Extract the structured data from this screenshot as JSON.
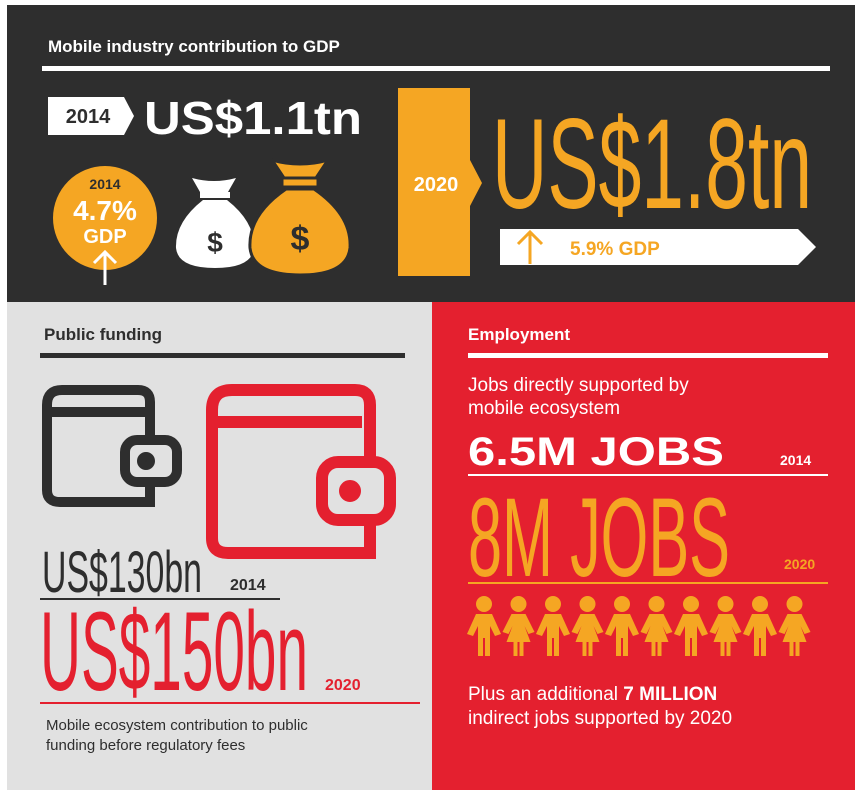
{
  "gdp": {
    "title": "Mobile industry contribution to GDP",
    "year_2014": "2014",
    "value_2014": "US$1.1tn",
    "circle": {
      "year": "2014",
      "value": "4.7%",
      "label": "GDP"
    },
    "bag_symbol": "$",
    "year_2020": "2020",
    "value_2020": "US$1.8tn",
    "growth": "5.9% GDP"
  },
  "public_funding": {
    "title": "Public funding",
    "rows": [
      {
        "value": "US$130bn",
        "year": "2014"
      },
      {
        "value": "US$150bn",
        "year": "2020"
      }
    ],
    "caption": [
      "Mobile ecosystem contribution to public",
      "funding before regulatory fees"
    ]
  },
  "employment": {
    "title": "Employment",
    "subtitle": [
      "Jobs directly supported by",
      "mobile ecosystem"
    ],
    "rows": [
      {
        "value": "6.5M JOBS",
        "year": "2014"
      },
      {
        "value": "8M JOBS",
        "year": "2020"
      }
    ],
    "footnote": {
      "text": "Plus an additional ",
      "highlight": "7 MILLION",
      "line2": "indirect jobs supported by 2020"
    }
  }
}
